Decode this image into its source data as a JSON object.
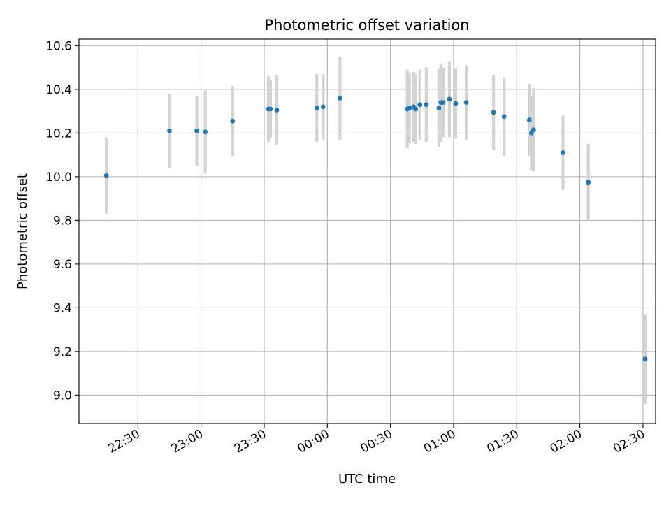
{
  "chart_data": {
    "type": "scatter",
    "title": "Photometric offset variation",
    "xlabel": "UTC time",
    "ylabel": "Photometric offset",
    "x_axis_kind": "time",
    "reference_date": "",
    "xlim": [
      "22:02",
      "02:36"
    ],
    "ylim": [
      8.87,
      10.63
    ],
    "grid": true,
    "x_ticks": [
      "22:30",
      "23:00",
      "23:30",
      "00:00",
      "00:30",
      "01:00",
      "01:30",
      "02:00",
      "02:30"
    ],
    "y_ticks": [
      "9.0",
      "9.2",
      "9.4",
      "9.6",
      "9.8",
      "10.0",
      "10.2",
      "10.4",
      "10.6"
    ],
    "colors": {
      "points": "#1f77b4",
      "errorbars": "#d3d3d3"
    },
    "series": [
      {
        "x": [
          "22:15",
          "22:45",
          "22:58",
          "23:02",
          "23:15",
          "23:32",
          "23:33",
          "23:36",
          "23:55",
          "23:58",
          "00:06",
          "00:38",
          "00:39",
          "00:41",
          "00:42",
          "00:44",
          "00:47",
          "00:53",
          "00:54",
          "00:55",
          "00:58",
          "01:01",
          "01:06",
          "01:19",
          "01:24",
          "01:36",
          "01:37",
          "01:38",
          "01:52",
          "02:04",
          "02:31"
        ],
        "y": [
          10.005,
          10.21,
          10.21,
          10.205,
          10.255,
          10.31,
          10.31,
          10.305,
          10.315,
          10.32,
          10.36,
          10.31,
          10.315,
          10.32,
          10.31,
          10.33,
          10.33,
          10.315,
          10.34,
          10.34,
          10.355,
          10.335,
          10.34,
          10.295,
          10.275,
          10.26,
          10.2,
          10.215,
          10.11,
          9.975,
          9.165
        ],
        "y_err": [
          0.175,
          0.17,
          0.16,
          0.19,
          0.16,
          0.15,
          0.13,
          0.16,
          0.155,
          0.15,
          0.19,
          0.18,
          0.16,
          0.16,
          0.16,
          0.16,
          0.17,
          0.18,
          0.18,
          0.16,
          0.175,
          0.16,
          0.17,
          0.17,
          0.18,
          0.165,
          0.17,
          0.19,
          0.17,
          0.175,
          0.205
        ]
      }
    ]
  }
}
